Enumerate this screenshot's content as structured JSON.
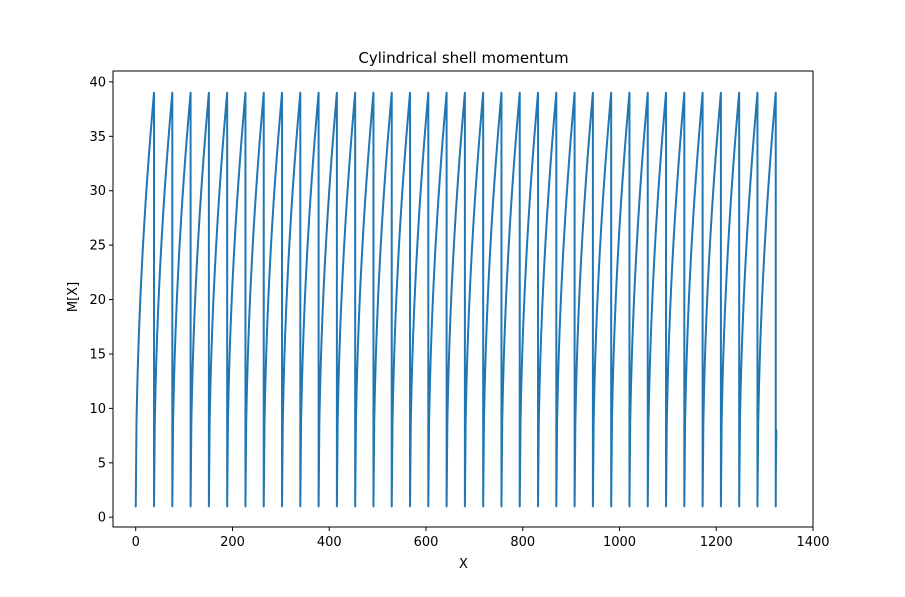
{
  "chart_data": {
    "type": "line",
    "title": "Cylindrical shell momentum",
    "xlabel": "X",
    "ylabel": "M[X]",
    "xlim": [
      -47,
      1400
    ],
    "ylim": [
      -0.9,
      41
    ],
    "xticks": [
      0,
      200,
      400,
      600,
      800,
      1000,
      1200,
      1400
    ],
    "yticks": [
      0,
      5,
      10,
      15,
      20,
      25,
      30,
      35,
      40
    ],
    "xtick_labels": [
      "0",
      "200",
      "400",
      "600",
      "800",
      "1000",
      "1200",
      "1400"
    ],
    "ytick_labels": [
      "0",
      "5",
      "10",
      "15",
      "20",
      "25",
      "30",
      "35",
      "40"
    ],
    "grid": false,
    "legend": "none",
    "line_color": "#1f77b4",
    "series": [
      {
        "pattern": "sawtooth",
        "x_start": 0,
        "period": 37.8,
        "cycles": 35,
        "y_min": 1,
        "y_max": 39,
        "curve_exponent": 0.5,
        "final_y": 8
      }
    ]
  }
}
